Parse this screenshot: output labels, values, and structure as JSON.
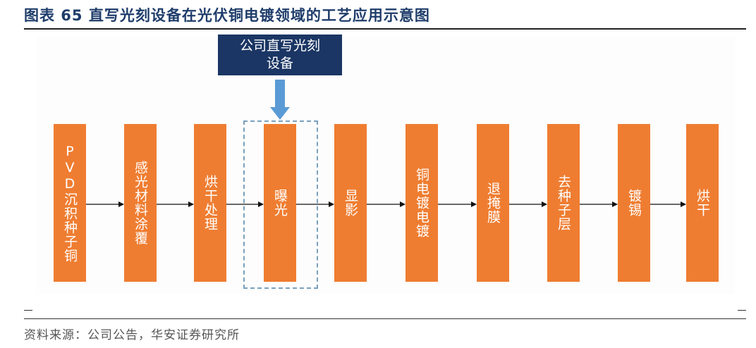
{
  "figure": {
    "title": "图表 65 直写光刻设备在光伏铜电镀领域的工艺应用示意图",
    "source": "资料来源：公司公告，华安证券研究所"
  },
  "callout": {
    "line1": "公司直写光刻",
    "line2": "设备"
  },
  "steps": [
    {
      "label": "PVD沉积种子铜"
    },
    {
      "label": "感光材料涂覆"
    },
    {
      "label": "烘干处理"
    },
    {
      "label": "曝光"
    },
    {
      "label": "显影"
    },
    {
      "label": "铜电镀电镀"
    },
    {
      "label": "退掩膜"
    },
    {
      "label": "去种子层"
    },
    {
      "label": "镀锡"
    },
    {
      "label": "烘干"
    }
  ],
  "highlighted_step_index": 3,
  "colors": {
    "step_fill": "#ef7d31",
    "callout_fill": "#1b3664",
    "arrow_blue": "#5b9bd5",
    "dashed_border": "#7aa1bd",
    "title_text": "#1f3d6b"
  }
}
